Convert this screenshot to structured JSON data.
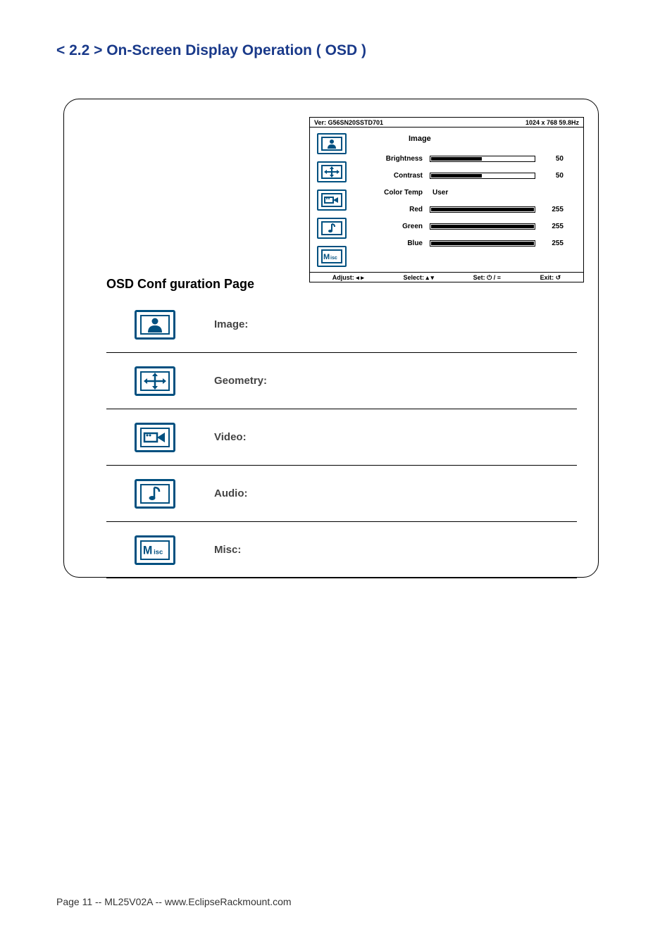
{
  "title": "< 2.2 > On-Screen Display Operation ( OSD )",
  "title_color": "#1a3a8a",
  "osd": {
    "ver_label": "Ver: G56SN20SSTD701",
    "res_label": "1024 x 768  59.8Hz",
    "heading": "Image",
    "icon_border_color": "#005080",
    "rows": [
      {
        "label": "Brightness",
        "value": 50,
        "max": 100,
        "display": "50"
      },
      {
        "label": "Contrast",
        "value": 50,
        "max": 100,
        "display": "50"
      },
      {
        "label": "Color Temp",
        "text": "User"
      },
      {
        "label": "Red",
        "value": 255,
        "max": 255,
        "display": "255"
      },
      {
        "label": "Green",
        "value": 255,
        "max": 255,
        "display": "255"
      },
      {
        "label": "Blue",
        "value": 255,
        "max": 255,
        "display": "255"
      }
    ],
    "footer": {
      "adjust": "Adjust: ◂ ▸",
      "select": "Select: ▴ ▾",
      "set": "Set: ⏻ / ≡",
      "exit": "Exit: ↺"
    }
  },
  "config": {
    "title": "OSD Conf guration Page",
    "rows": [
      {
        "label": "Image:"
      },
      {
        "label": "Geometry:"
      },
      {
        "label": "Video:"
      },
      {
        "label": "Audio:"
      },
      {
        "label": "Misc:"
      }
    ]
  },
  "footer_text": "Page 11 -- ML25V02A -- www.EclipseRackmount.com"
}
